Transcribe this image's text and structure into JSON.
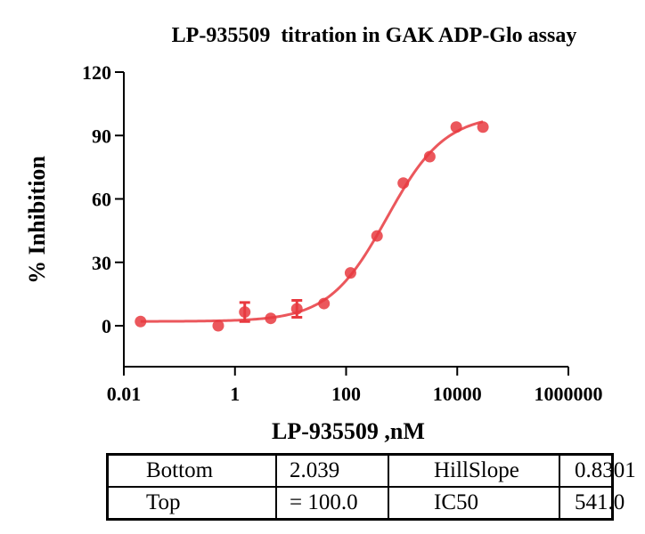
{
  "chart_data": {
    "type": "scatter",
    "title": "LP-935509  titration in GAK ADP-Glo assay",
    "xlabel": "LP-935509 ,nM",
    "ylabel": "% Inhibition",
    "xscale": "log10",
    "xlim": [
      0.01,
      1000000
    ],
    "ylim": [
      -15,
      120
    ],
    "xticks": [
      0.01,
      1,
      100,
      10000,
      1000000
    ],
    "xtick_labels": [
      "0.01",
      "1",
      "100",
      "10000",
      "1000000"
    ],
    "yticks": [
      0,
      30,
      60,
      90,
      120
    ],
    "ytick_labels": [
      "0",
      "30",
      "60",
      "90",
      "120"
    ],
    "grid": false,
    "color": "#e8393f",
    "series": [
      {
        "x": [
          0.02,
          0.5,
          1.5,
          4.4,
          13,
          40,
          120,
          360,
          1070,
          3200,
          9600,
          29000
        ],
        "y": [
          2,
          0,
          6.5,
          3.5,
          8,
          10.5,
          25,
          42.5,
          67.5,
          80,
          94,
          94
        ],
        "error": [
          0,
          0,
          4.5,
          0,
          4,
          0,
          0,
          0,
          0,
          0,
          0,
          0
        ]
      }
    ],
    "fit_curve": {
      "model": "four-parameter logistic",
      "Bottom": 2.039,
      "Top": 100.0,
      "HillSlope": 0.8301,
      "IC50": 541.0
    }
  },
  "results_table": {
    "rows": [
      [
        "Bottom",
        "2.039",
        "HillSlope",
        "0.8301"
      ],
      [
        "Top",
        "= 100.0",
        "IC50",
        "541.0"
      ]
    ]
  }
}
